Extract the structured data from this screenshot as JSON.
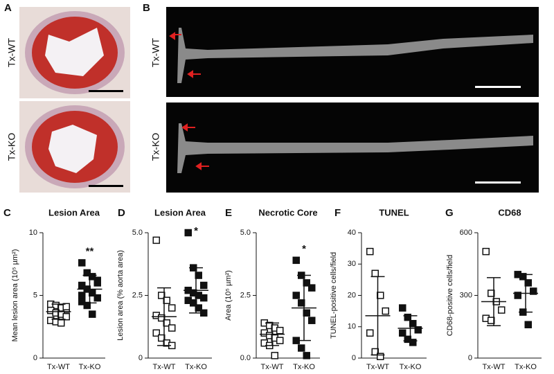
{
  "image_panels": [
    {
      "letter": "A",
      "rows": [
        "Tx-WT",
        "Tx-KO"
      ]
    },
    {
      "letter": "B",
      "rows": [
        "Tx-WT",
        "Tx-KO"
      ]
    }
  ],
  "chart_data": [
    {
      "type": "dotplot",
      "letter": "C",
      "title": "Lesion Area",
      "ylabel": "Mean lesion area (10⁵ µm²)",
      "categories": [
        "Tx-WT",
        "Tx-KO"
      ],
      "markers": [
        "open-square",
        "filled-square"
      ],
      "color": "#111111",
      "values": [
        [
          4.3,
          4.2,
          4.0,
          3.9,
          3.8,
          3.6,
          3.5,
          3.3,
          3.0,
          2.9,
          2.8,
          4.1
        ],
        [
          7.6,
          6.8,
          6.5,
          6.2,
          5.8,
          5.5,
          5.2,
          4.8,
          4.5,
          4.2,
          3.5,
          6.0,
          5.0
        ]
      ],
      "mean": [
        3.7,
        5.5
      ],
      "sd": [
        0.6,
        1.1
      ],
      "significance": [
        null,
        "**"
      ],
      "ylim": [
        0,
        10
      ],
      "yticks": [
        0,
        5,
        10
      ]
    },
    {
      "type": "dotplot",
      "letter": "D",
      "title": "Lesion Area",
      "ylabel": "Lesion area (% aorta area)",
      "categories": [
        "Tx-WT",
        "Tx-KO"
      ],
      "markers": [
        "open-square",
        "filled-square"
      ],
      "color": "#111111",
      "values": [
        [
          4.7,
          2.5,
          2.3,
          2.0,
          1.7,
          1.6,
          1.4,
          1.2,
          1.0,
          0.8,
          0.6,
          0.5
        ],
        [
          5.0,
          3.6,
          3.3,
          2.9,
          2.7,
          2.6,
          2.5,
          2.4,
          2.3,
          2.2,
          2.0,
          1.8
        ]
      ],
      "mean": [
        1.65,
        2.7
      ],
      "sd": [
        1.15,
        0.9
      ],
      "significance": [
        null,
        "*"
      ],
      "ylim": [
        0,
        5
      ],
      "yticks": [
        0,
        2.5,
        {
          "value": 5,
          "label": "5.0"
        }
      ]
    },
    {
      "type": "dotplot",
      "letter": "E",
      "title": "Necrotic Core",
      "ylabel": "Area (10⁵ µm²)",
      "categories": [
        "Tx-WT",
        "Tx-KO"
      ],
      "markers": [
        "open-square",
        "filled-square"
      ],
      "color": "#111111",
      "values": [
        [
          1.4,
          1.3,
          1.2,
          1.1,
          1.0,
          0.9,
          0.8,
          0.7,
          0.6,
          0.5,
          0.1
        ],
        [
          3.9,
          3.3,
          3.0,
          2.8,
          2.5,
          2.2,
          1.8,
          1.5,
          0.7,
          0.4,
          0.1
        ]
      ],
      "mean": [
        0.95,
        2.0
      ],
      "sd": [
        0.45,
        1.3
      ],
      "significance": [
        null,
        "*"
      ],
      "ylim": [
        0,
        5
      ],
      "yticks": [
        {
          "value": 0,
          "label": "0.0"
        },
        2.5,
        {
          "value": 5,
          "label": "5.0"
        }
      ]
    },
    {
      "type": "dotplot",
      "letter": "F",
      "title": "TUNEL",
      "ylabel": "TUNEL-positive cells/field",
      "categories": [
        "Tx-WT",
        "Tx-KO"
      ],
      "markers": [
        "open-square",
        "filled-square"
      ],
      "color": "#111111",
      "values": [
        [
          34,
          27,
          20,
          15,
          8,
          2,
          0.5
        ],
        [
          16,
          13,
          11,
          9,
          8,
          6,
          5
        ]
      ],
      "mean": [
        13.5,
        9.5
      ],
      "sd": [
        12.5,
        4
      ],
      "significance": [
        null,
        null
      ],
      "ylim": [
        0,
        40
      ],
      "yticks": [
        0,
        10,
        20,
        30,
        40
      ]
    },
    {
      "type": "dotplot",
      "letter": "G",
      "title": "CD68",
      "ylabel": "CD68-positive cells/field",
      "categories": [
        "Tx-WT",
        "Tx-KO"
      ],
      "markers": [
        "open-square",
        "filled-square"
      ],
      "color": "#111111",
      "values": [
        [
          510,
          310,
          270,
          230,
          190,
          180
        ],
        [
          400,
          390,
          360,
          320,
          300,
          220,
          160
        ]
      ],
      "mean": [
        270,
        310
      ],
      "sd": [
        115,
        90
      ],
      "significance": [
        null,
        null
      ],
      "ylim": [
        0,
        600
      ],
      "yticks": [
        0,
        300,
        600
      ]
    }
  ]
}
